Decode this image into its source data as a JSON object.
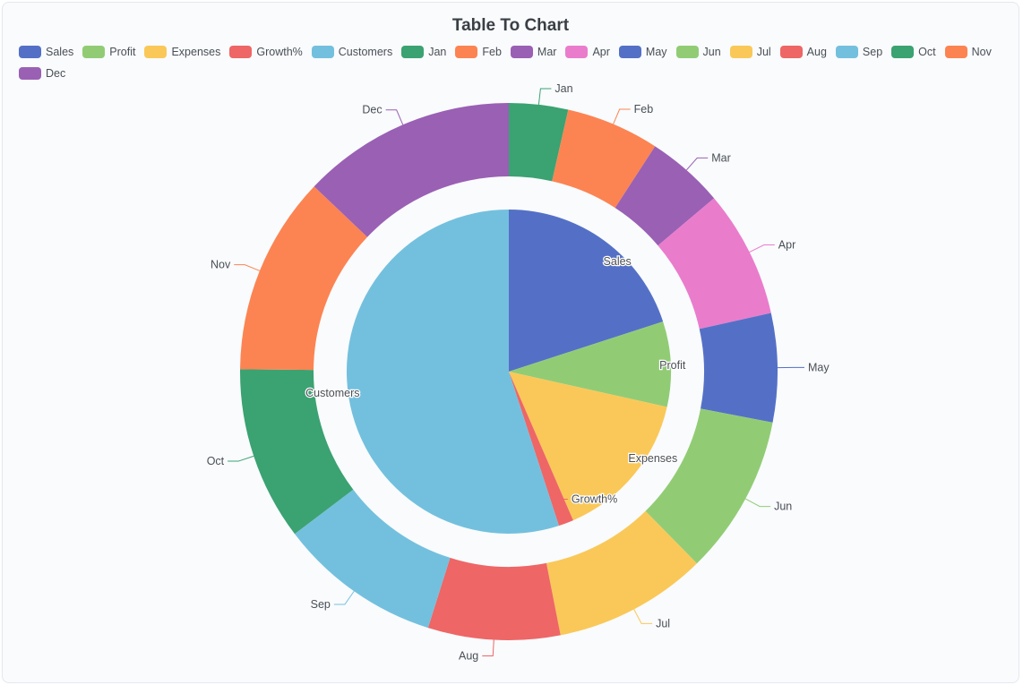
{
  "chart_data": {
    "type": "pie",
    "title": "Table To Chart",
    "legend_placement": "top-left",
    "legend": [
      "Sales",
      "Profit",
      "Expenses",
      "Growth%",
      "Customers",
      "Jan",
      "Feb",
      "Mar",
      "Apr",
      "May",
      "Jun",
      "Jul",
      "Aug",
      "Sep",
      "Oct",
      "Nov",
      "Dec"
    ],
    "inner": {
      "name": "metrics",
      "slices": [
        {
          "label": "Sales",
          "value": 20,
          "color": "#5470c6"
        },
        {
          "label": "Profit",
          "value": 8.5,
          "color": "#91cc75"
        },
        {
          "label": "Expenses",
          "value": 15,
          "color": "#fac858"
        },
        {
          "label": "Growth%",
          "value": 1.5,
          "color": "#ee6666"
        },
        {
          "label": "Customers",
          "value": 55,
          "color": "#73c0de"
        }
      ]
    },
    "outer": {
      "name": "months",
      "slices": [
        {
          "label": "Jan",
          "value": 3.8,
          "color": "#3ba272"
        },
        {
          "label": "Feb",
          "value": 6.0,
          "color": "#fc8452"
        },
        {
          "label": "Mar",
          "value": 5.0,
          "color": "#9a60b4"
        },
        {
          "label": "Apr",
          "value": 8.2,
          "color": "#ea7ccc"
        },
        {
          "label": "May",
          "value": 7.0,
          "color": "#5470c6"
        },
        {
          "label": "Jun",
          "value": 10.3,
          "color": "#91cc75"
        },
        {
          "label": "Jul",
          "value": 9.9,
          "color": "#fac858"
        },
        {
          "label": "Aug",
          "value": 8.5,
          "color": "#ee6666"
        },
        {
          "label": "Sep",
          "value": 10.5,
          "color": "#73c0de"
        },
        {
          "label": "Oct",
          "value": 11.2,
          "color": "#3ba272"
        },
        {
          "label": "Nov",
          "value": 12.8,
          "color": "#fc8452"
        },
        {
          "label": "Dec",
          "value": 13.8,
          "color": "#9a60b4"
        }
      ]
    }
  }
}
